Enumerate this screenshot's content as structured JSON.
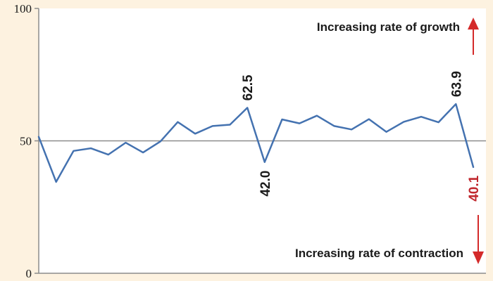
{
  "chart_data": {
    "type": "line",
    "ylim": [
      0,
      100
    ],
    "y_ticks": [
      {
        "value": 100,
        "label": "100"
      },
      {
        "value": 50,
        "label": "50"
      },
      {
        "value": 0,
        "label": "0"
      }
    ],
    "reference_line": 50,
    "grid": false,
    "series": [
      {
        "values": [
          51.5,
          34.5,
          46.2,
          47.2,
          44.8,
          49.3,
          45.6,
          49.8,
          57.1,
          52.7,
          55.6,
          56.1,
          62.5,
          42.0,
          58.1,
          56.6,
          59.5,
          55.6,
          54.3,
          58.2,
          53.4,
          57.2,
          59.1,
          57.0,
          63.9,
          40.1
        ]
      }
    ],
    "data_labels": [
      {
        "index": 12,
        "text": "62.5",
        "position": "above",
        "color": "#1a1a1a"
      },
      {
        "index": 13,
        "text": "42.0",
        "position": "below",
        "color": "#1a1a1a"
      },
      {
        "index": 24,
        "text": "63.9",
        "position": "above",
        "color": "#1a1a1a"
      },
      {
        "index": 25,
        "text": "40.1",
        "position": "below",
        "color": "#c0272d"
      }
    ],
    "annotations": {
      "growth": "Increasing rate of growth",
      "contraction": "Increasing rate of contraction"
    }
  },
  "colors": {
    "background": "#fdf2e0",
    "plot_background": "#ffffff",
    "line": "#4472b0",
    "axis": "#8c8c8c",
    "arrow": "#d42a2a"
  }
}
